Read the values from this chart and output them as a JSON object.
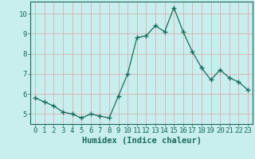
{
  "x": [
    0,
    1,
    2,
    3,
    4,
    5,
    6,
    7,
    8,
    9,
    10,
    11,
    12,
    13,
    14,
    15,
    16,
    17,
    18,
    19,
    20,
    21,
    22,
    23
  ],
  "y": [
    5.8,
    5.6,
    5.4,
    5.1,
    5.0,
    4.8,
    5.0,
    4.9,
    4.8,
    5.9,
    7.0,
    8.8,
    8.9,
    9.4,
    9.1,
    10.3,
    9.1,
    8.1,
    7.3,
    6.7,
    7.2,
    6.8,
    6.6,
    6.2
  ],
  "line_color": "#1a6b5a",
  "marker": "+",
  "marker_size": 4,
  "bg_color": "#c8eeee",
  "grid_color": "#d8b0b0",
  "xlabel": "Humidex (Indice chaleur)",
  "ylim": [
    4.5,
    10.6
  ],
  "xlim": [
    -0.5,
    23.5
  ],
  "yticks": [
    5,
    6,
    7,
    8,
    9,
    10
  ],
  "xticks": [
    0,
    1,
    2,
    3,
    4,
    5,
    6,
    7,
    8,
    9,
    10,
    11,
    12,
    13,
    14,
    15,
    16,
    17,
    18,
    19,
    20,
    21,
    22,
    23
  ],
  "tick_color": "#1a6b5a",
  "xlabel_fontsize": 7.5,
  "tick_fontsize": 6.5
}
